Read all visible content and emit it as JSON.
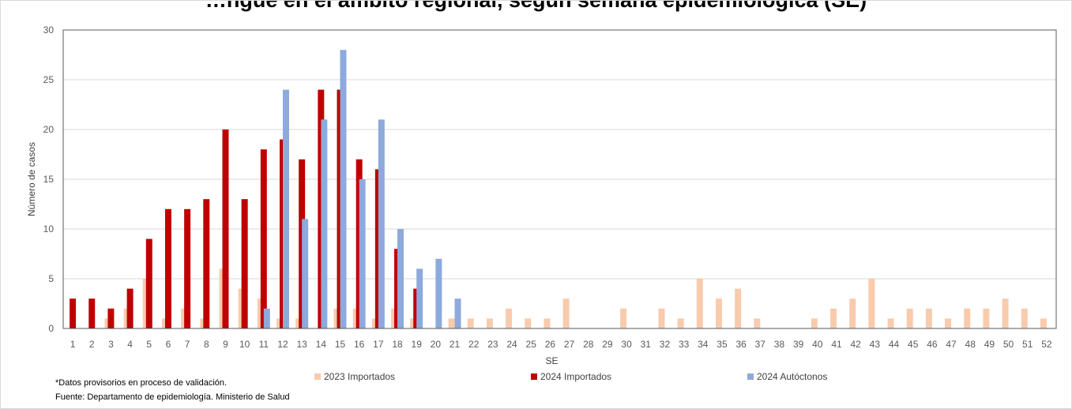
{
  "title": "…ngue en el ámbito regional, según semana epidemiológica (SE)",
  "notes": {
    "provisional": "*Datos provisorios en proceso de validación.",
    "source": "Fuente: Departamento de epidemiología. Ministerio de Salud"
  },
  "chart_data": {
    "type": "bar",
    "xlabel": "SE",
    "ylabel": "Número de casos",
    "ylim": [
      0,
      30
    ],
    "yticks": [
      0,
      5,
      10,
      15,
      20,
      25,
      30
    ],
    "grid": true,
    "legend_position": "bottom",
    "categories": [
      "1",
      "2",
      "3",
      "4",
      "5",
      "6",
      "7",
      "8",
      "9",
      "10",
      "11",
      "12",
      "13",
      "14",
      "15",
      "16",
      "17",
      "18",
      "19",
      "20",
      "21",
      "22",
      "23",
      "24",
      "25",
      "26",
      "27",
      "28",
      "29",
      "30",
      "31",
      "32",
      "33",
      "34",
      "35",
      "36",
      "37",
      "38",
      "39",
      "40",
      "41",
      "42",
      "43",
      "44",
      "45",
      "46",
      "47",
      "48",
      "49",
      "50",
      "51",
      "52"
    ],
    "series": [
      {
        "name": "2023 Importados",
        "color": "#F8CBAD",
        "values": [
          0,
          0,
          1,
          2,
          5,
          1,
          2,
          1,
          6,
          4,
          3,
          1,
          1,
          0,
          2,
          2,
          1,
          2,
          1,
          0,
          1,
          1,
          1,
          2,
          1,
          1,
          3,
          0,
          0,
          2,
          0,
          2,
          1,
          5,
          3,
          4,
          1,
          0,
          0,
          1,
          2,
          3,
          5,
          1,
          2,
          2,
          1,
          2,
          2,
          3,
          2,
          1
        ]
      },
      {
        "name": "2024 Importados",
        "color": "#C00000",
        "values": [
          3,
          3,
          2,
          4,
          9,
          12,
          12,
          13,
          20,
          13,
          18,
          19,
          17,
          24,
          24,
          17,
          16,
          8,
          4,
          0,
          0,
          0,
          0,
          0,
          0,
          0,
          0,
          0,
          0,
          0,
          0,
          0,
          0,
          0,
          0,
          0,
          0,
          0,
          0,
          0,
          0,
          0,
          0,
          0,
          0,
          0,
          0,
          0,
          0,
          0,
          0,
          0
        ]
      },
      {
        "name": "2024 Autóctonos",
        "color": "#8EA9DB",
        "values": [
          0,
          0,
          0,
          0,
          0,
          0,
          0,
          0,
          0,
          0,
          2,
          24,
          11,
          21,
          28,
          15,
          21,
          10,
          6,
          7,
          3,
          0,
          0,
          0,
          0,
          0,
          0,
          0,
          0,
          0,
          0,
          0,
          0,
          0,
          0,
          0,
          0,
          0,
          0,
          0,
          0,
          0,
          0,
          0,
          0,
          0,
          0,
          0,
          0,
          0,
          0,
          0
        ]
      }
    ]
  }
}
